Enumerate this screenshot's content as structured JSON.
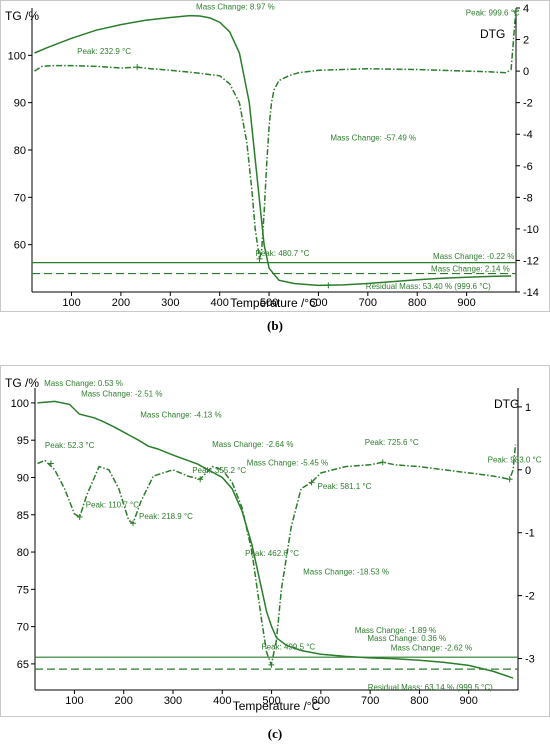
{
  "colors": {
    "curve": "#2a7d2a",
    "annotation": "#3a8a3a",
    "axis": "#000000",
    "frame": "#c8c8c8"
  },
  "chart_data": [
    {
      "type": "line",
      "caption": "(b)",
      "xlabel": "Temperature /°C",
      "ylabel": "TG /%",
      "y2label": "DTG",
      "xlim": [
        20,
        1000
      ],
      "ylim": [
        50,
        110
      ],
      "y2lim": [
        -14,
        4
      ],
      "xticks": [
        100,
        200,
        300,
        400,
        500,
        600,
        700,
        800,
        900
      ],
      "yticks": [
        60,
        70,
        80,
        90,
        100
      ],
      "y2ticks": [
        4,
        2,
        0,
        -2,
        -4,
        -6,
        -8,
        -10,
        -12,
        -14
      ],
      "series": [
        {
          "role": "tg",
          "axis": "left",
          "x": [
            25,
            50,
            100,
            150,
            200,
            250,
            300,
            340,
            360,
            380,
            400,
            420,
            440,
            460,
            475,
            490,
            500,
            520,
            550,
            600,
            650,
            700,
            750,
            800,
            850,
            900,
            950,
            990
          ],
          "y": [
            100.5,
            101.6,
            103.6,
            105.3,
            106.5,
            107.4,
            108.0,
            108.4,
            108.3,
            107.9,
            107.0,
            105.0,
            100.5,
            90.0,
            75.0,
            60.0,
            55.0,
            52.5,
            51.8,
            51.4,
            51.5,
            51.8,
            52.2,
            52.6,
            52.9,
            53.1,
            53.3,
            53.4
          ]
        },
        {
          "role": "dtg",
          "axis": "right",
          "x": [
            25,
            40,
            60,
            100,
            150,
            200,
            232.9,
            260,
            300,
            350,
            400,
            420,
            440,
            455,
            465,
            472,
            480.7,
            485,
            490,
            495,
            500,
            505,
            510,
            520,
            540,
            560,
            600,
            650,
            700,
            750,
            800,
            850,
            900,
            950,
            980,
            990,
            995,
            999.6
          ],
          "y": [
            0.0,
            0.3,
            0.35,
            0.35,
            0.3,
            0.2,
            0.25,
            0.15,
            0.05,
            -0.1,
            -0.3,
            -0.8,
            -2.0,
            -4.5,
            -7.5,
            -10.0,
            -11.9,
            -11.3,
            -9.0,
            -6.0,
            -3.5,
            -2.0,
            -1.2,
            -0.6,
            -0.3,
            -0.1,
            0.05,
            0.1,
            0.15,
            0.12,
            0.1,
            0.05,
            0.0,
            -0.05,
            -0.1,
            0.1,
            2.0,
            3.8
          ]
        }
      ],
      "reference_lines": [
        {
          "style": "solid",
          "axis": "left",
          "y": 56.2
        },
        {
          "style": "dashed",
          "axis": "left",
          "y": 53.9
        }
      ],
      "markers": [
        {
          "x": 232.9,
          "axis": "right",
          "y": 0.25
        },
        {
          "x": 480.7,
          "axis": "right",
          "y": -11.9
        },
        {
          "x": 999.6,
          "axis": "right",
          "y": 3.8
        },
        {
          "x": 620,
          "axis": "left",
          "y": 51.4
        }
      ],
      "annotations": [
        {
          "text": "Mass Change: 8.97 %",
          "x": 340,
          "y": 108.4
        },
        {
          "text": "Peak: 232.9 °C",
          "x": 232.9,
          "y": 99.0
        },
        {
          "text": "Peak: 999.6 °C",
          "x": 999.6,
          "y": 108
        },
        {
          "text": "Mass Change: -57.49 %",
          "x": 620,
          "y": 82
        },
        {
          "text": "Peak: 480.7 °C",
          "x": 480.7,
          "y": 58
        },
        {
          "text": "Mass Change: -0.22 %",
          "x": 990,
          "y": 58
        },
        {
          "text": "Mass Change: 2.14 %",
          "x": 990,
          "y": 55
        },
        {
          "text": "Residual Mass: 53.40 % (999.6 °C)",
          "x": 999.6,
          "y": 53.4
        }
      ]
    },
    {
      "type": "line",
      "caption": "(c)",
      "xlabel": "Temperature /°C",
      "ylabel": "TG /%",
      "y2label": "DTG",
      "xlim": [
        20,
        1000
      ],
      "ylim": [
        61.5,
        102
      ],
      "y2lim": [
        -3.5,
        1.3
      ],
      "xticks": [
        100,
        200,
        300,
        400,
        500,
        600,
        700,
        800,
        900
      ],
      "yticks": [
        65,
        70,
        75,
        80,
        85,
        90,
        95,
        100
      ],
      "y2ticks": [
        1,
        0,
        -1,
        -2,
        -3
      ],
      "series": [
        {
          "role": "tg",
          "axis": "left",
          "x": [
            25,
            60,
            90,
            110,
            140,
            155,
            180,
            230,
            250,
            270,
            300,
            350,
            400,
            420,
            440,
            460,
            480,
            490,
            500,
            510,
            530,
            560,
            600,
            650,
            700,
            750,
            800,
            850,
            900,
            950,
            990
          ],
          "y": [
            100,
            100.2,
            99.8,
            98.5,
            98.0,
            97.6,
            96.8,
            95.0,
            94.2,
            93.8,
            93.0,
            91.8,
            90.0,
            88.5,
            85.5,
            81.0,
            75.0,
            72.0,
            70.0,
            68.5,
            67.5,
            66.8,
            66.3,
            66.0,
            65.8,
            65.7,
            65.5,
            65.2,
            64.8,
            64.0,
            63.1
          ]
        },
        {
          "role": "dtg",
          "axis": "right",
          "x": [
            25,
            40,
            60,
            80,
            100,
            110.7,
            125,
            150,
            170,
            190,
            210,
            218.9,
            235,
            260,
            300,
            330,
            355.2,
            380,
            400,
            420,
            440,
            460,
            480,
            490,
            499.5,
            510,
            520,
            540,
            560,
            581.1,
            600,
            650,
            700,
            725.6,
            750,
            800,
            850,
            900,
            950,
            983.0,
            990,
            995
          ],
          "y": [
            0.1,
            0.15,
            0.0,
            -0.3,
            -0.7,
            -0.75,
            -0.4,
            0.05,
            0.0,
            -0.3,
            -0.8,
            -0.85,
            -0.5,
            -0.1,
            0.0,
            -0.1,
            -0.15,
            0.05,
            0.0,
            -0.2,
            -0.6,
            -1.3,
            -2.4,
            -2.9,
            -3.1,
            -2.7,
            -1.9,
            -0.9,
            -0.3,
            -0.2,
            -0.05,
            0.05,
            0.08,
            0.12,
            0.08,
            0.05,
            0.0,
            -0.05,
            -0.1,
            -0.15,
            0.0,
            0.4
          ]
        }
      ],
      "reference_lines": [
        {
          "style": "solid",
          "axis": "left",
          "y": 65.9
        },
        {
          "style": "dashed",
          "axis": "left",
          "y": 64.3
        }
      ],
      "markers": [
        {
          "x": 52.3,
          "axis": "right",
          "y": 0.1
        },
        {
          "x": 110.7,
          "axis": "right",
          "y": -0.75
        },
        {
          "x": 218.9,
          "axis": "right",
          "y": -0.85
        },
        {
          "x": 355.2,
          "axis": "right",
          "y": -0.15
        },
        {
          "x": 499.5,
          "axis": "right",
          "y": -3.1
        },
        {
          "x": 581.1,
          "axis": "right",
          "y": -0.2
        },
        {
          "x": 725.6,
          "axis": "right",
          "y": 0.12
        },
        {
          "x": 983.0,
          "axis": "right",
          "y": -0.15
        }
      ],
      "annotations": [
        {
          "text": "Mass Change: 0.53 %",
          "x": 75,
          "y": 101.2
        },
        {
          "text": "Mass Change: -2.51 %",
          "x": 150,
          "y": 99.8
        },
        {
          "text": "Mass Change: -4.13 %",
          "x": 270,
          "y": 97.0
        },
        {
          "text": "Mass Change: -2.64 %",
          "x": 420,
          "y": 93.3
        },
        {
          "text": "Mass Change: -5.45 %",
          "x": 470,
          "y": 90.8
        },
        {
          "text": "Peak: 52.3 °C",
          "x": 52.3,
          "y": 93.4
        },
        {
          "text": "Peak: 110.7 °C",
          "x": 110.7,
          "y": 86.8
        },
        {
          "text": "Peak: 218.9 °C",
          "x": 218.9,
          "y": 85.0
        },
        {
          "text": "Peak: 355.2 °C",
          "x": 355.2,
          "y": 89.8
        },
        {
          "text": "Peak: 725.6 °C",
          "x": 725.6,
          "y": 93.3
        },
        {
          "text": "Peak: 983.0 °C",
          "x": 983.0,
          "y": 91.5
        },
        {
          "text": "Peak: 581.1 °C",
          "x": 581.1,
          "y": 89.0
        },
        {
          "text": "Peak: 462.6 °C",
          "x": 462.6,
          "y": 79.2
        },
        {
          "text": "Mass Change: -18.53 %",
          "x": 560,
          "y": 77.0
        },
        {
          "text": "Peak: 499.5 °C",
          "x": 499.5,
          "y": 66.9
        },
        {
          "text": "Mass Change: -1.89 %",
          "x": 750,
          "y": 68.6
        },
        {
          "text": "Mass Change: 0.36 %",
          "x": 800,
          "y": 67.3
        },
        {
          "text": "Mass Change: -2.62 %",
          "x": 900,
          "y": 66.0
        },
        {
          "text": "Residual Mass: 63.14 % (999.5 °C)",
          "x": 999.5,
          "y": 63.1
        }
      ]
    }
  ]
}
